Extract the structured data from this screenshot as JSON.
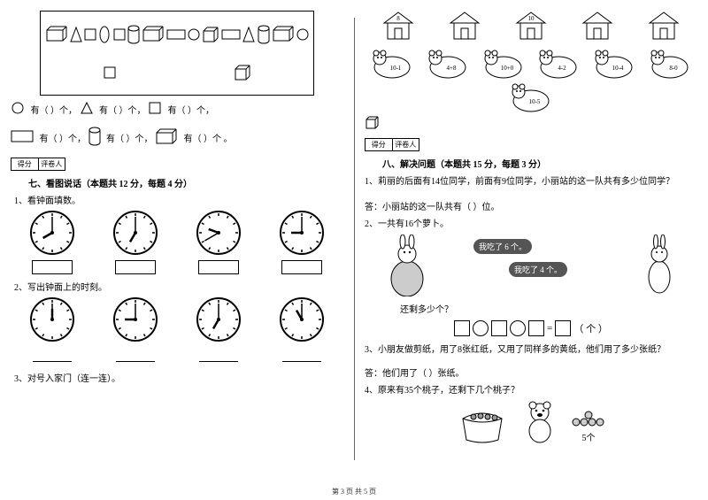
{
  "footer": "第 3 页 共 5 页",
  "scorebox": {
    "c1": "得分",
    "c2": "评卷人"
  },
  "left": {
    "shape_counts": {
      "circle": "有（  ）个，",
      "triangle": "有（  ）个，",
      "square": "有（  ）个，",
      "rect": "有（  ）个，",
      "cylinder": "有（  ）个，",
      "cube": "有（  ）个 。"
    },
    "section7_title": "七、看图说话（本题共 12 分，每题 4 分）",
    "q1": "1、看钟面填数。",
    "q2": "2、写出钟面上的时刻。",
    "q3": "3、对号入家门（连一连）。",
    "clocks1": [
      {
        "h": 8,
        "m": 0
      },
      {
        "h": 7,
        "m": 0
      },
      {
        "h": 9,
        "m": 40
      },
      {
        "h": 9,
        "m": 0
      }
    ],
    "clocks2": [
      {
        "h": 12,
        "m": 0
      },
      {
        "h": 9,
        "m": 0
      },
      {
        "h": 7,
        "m": 0
      },
      {
        "h": 11,
        "m": 0
      }
    ]
  },
  "right": {
    "houses": [
      "8",
      "",
      "10",
      "",
      ""
    ],
    "bears": [
      "10-1",
      "4+8",
      "10+0",
      "4-2",
      "10-4",
      "8-0",
      "10-5"
    ],
    "section8_title": "八、解决问题（本题共 15 分，每题 3 分）",
    "q1": "1、莉丽的后面有14位同学，前面有9位同学，小丽站的这一队共有多少位同学？",
    "a1": "答：小丽站的这一队共有（    ）位。",
    "q2": "2、一共有16个萝卜。",
    "bub1": "我吃了 6 个。",
    "bub2": "我吃了 4 个。",
    "q2b": "还剩多少个？",
    "eq_unit": "（ 个 ）",
    "q3": "3、小朋友做剪纸，用了8张红纸，又用了同样多的黄纸，他们用了多少张纸？",
    "a3": "答：他们用了（    ）张纸。",
    "q4": "4、原来有35个桃子，还剩下几个桃子？",
    "peach_label": "5个"
  }
}
